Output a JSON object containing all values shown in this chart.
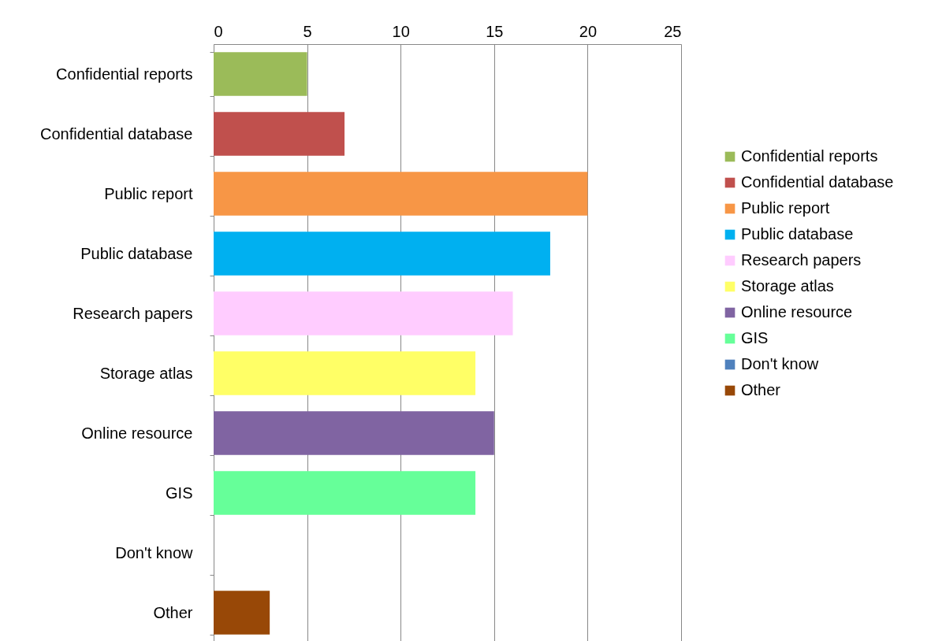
{
  "chart_data": {
    "type": "bar",
    "orientation": "horizontal",
    "stacked": true,
    "categories": [
      "Confidential reports",
      "Confidential database",
      "Public report",
      "Public database",
      "Research papers",
      "Storage atlas",
      "Online resource",
      "GIS",
      "Don't know",
      "Other"
    ],
    "series": [
      {
        "name": "Confidential reports",
        "color": "#9bbb59",
        "values": [
          5,
          null,
          null,
          null,
          null,
          null,
          null,
          null,
          null,
          null
        ]
      },
      {
        "name": "Confidential database",
        "color": "#c0504d",
        "values": [
          null,
          7,
          null,
          null,
          null,
          null,
          null,
          null,
          null,
          null
        ]
      },
      {
        "name": "Public report",
        "color": "#f79646",
        "values": [
          null,
          null,
          20,
          null,
          null,
          null,
          null,
          null,
          null,
          null
        ]
      },
      {
        "name": "Public database",
        "color": "#00b0f0",
        "values": [
          null,
          null,
          null,
          18,
          null,
          null,
          null,
          null,
          null,
          null
        ]
      },
      {
        "name": "Research papers",
        "color": "#ffccff",
        "values": [
          null,
          null,
          null,
          null,
          16,
          null,
          null,
          null,
          null,
          null
        ]
      },
      {
        "name": "Storage atlas",
        "color": "#ffff66",
        "values": [
          null,
          null,
          null,
          null,
          null,
          14,
          null,
          null,
          null,
          null
        ]
      },
      {
        "name": "Online resource",
        "color": "#8064a2",
        "values": [
          null,
          null,
          null,
          null,
          null,
          null,
          15,
          null,
          null,
          null
        ]
      },
      {
        "name": "GIS",
        "color": "#66ff99",
        "values": [
          null,
          null,
          null,
          null,
          null,
          null,
          null,
          14,
          null,
          null
        ]
      },
      {
        "name": "Don't know",
        "color": "#4f81bd",
        "values": [
          null,
          null,
          null,
          null,
          null,
          null,
          null,
          null,
          0,
          null
        ]
      },
      {
        "name": "Other",
        "color": "#984807",
        "values": [
          null,
          null,
          null,
          null,
          null,
          null,
          null,
          null,
          null,
          3
        ]
      }
    ],
    "xlim": [
      0,
      25
    ],
    "xticks": [
      0,
      5,
      10,
      15,
      20,
      25
    ],
    "grid": "x",
    "legend": "right"
  }
}
